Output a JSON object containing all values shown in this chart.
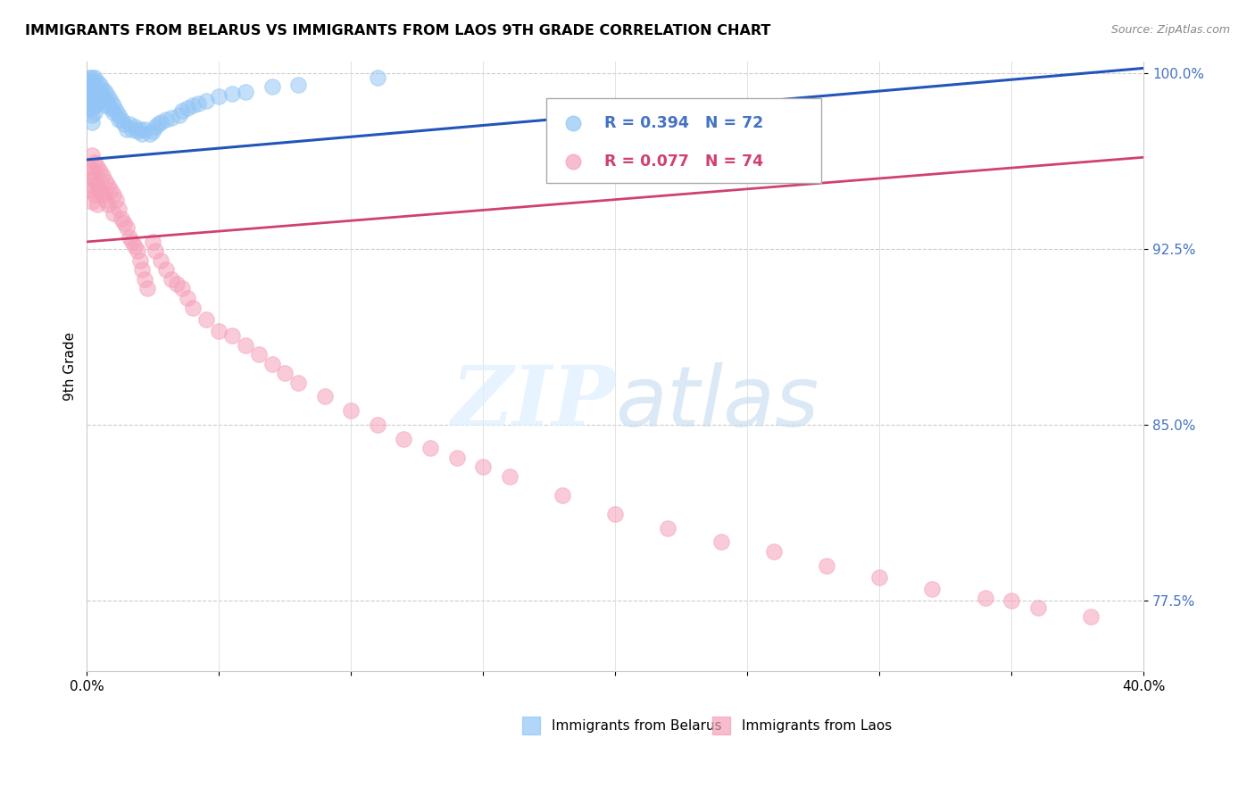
{
  "title": "IMMIGRANTS FROM BELARUS VS IMMIGRANTS FROM LAOS 9TH GRADE CORRELATION CHART",
  "source": "Source: ZipAtlas.com",
  "ylabel": "9th Grade",
  "xlim": [
    0.0,
    0.4
  ],
  "ylim": [
    0.745,
    1.005
  ],
  "yticks": [
    1.0,
    0.925,
    0.85,
    0.775
  ],
  "ytick_labels": [
    "100.0%",
    "92.5%",
    "85.0%",
    "77.5%"
  ],
  "xtick_positions": [
    0.0,
    0.05,
    0.1,
    0.15,
    0.2,
    0.25,
    0.3,
    0.35,
    0.4
  ],
  "blue_color": "#92c5f5",
  "pink_color": "#f5a0b8",
  "trend_blue": "#2255bb",
  "trend_pink": "#d04070",
  "legend_r_blue": "R = 0.394",
  "legend_n_blue": "N = 72",
  "legend_r_pink": "R = 0.077",
  "legend_n_pink": "N = 74",
  "legend_blue_label": "Immigrants from Belarus",
  "legend_pink_label": "Immigrants from Laos",
  "belarus_x": [
    0.001,
    0.001,
    0.001,
    0.001,
    0.001,
    0.001,
    0.001,
    0.002,
    0.002,
    0.002,
    0.002,
    0.002,
    0.002,
    0.002,
    0.002,
    0.002,
    0.003,
    0.003,
    0.003,
    0.003,
    0.003,
    0.003,
    0.004,
    0.004,
    0.004,
    0.004,
    0.005,
    0.005,
    0.005,
    0.006,
    0.006,
    0.007,
    0.007,
    0.007,
    0.008,
    0.008,
    0.009,
    0.009,
    0.01,
    0.01,
    0.011,
    0.012,
    0.012,
    0.013,
    0.014,
    0.015,
    0.016,
    0.017,
    0.018,
    0.019,
    0.02,
    0.021,
    0.022,
    0.024,
    0.025,
    0.026,
    0.027,
    0.028,
    0.03,
    0.032,
    0.035,
    0.036,
    0.038,
    0.04,
    0.042,
    0.045,
    0.05,
    0.055,
    0.06,
    0.07,
    0.08,
    0.11
  ],
  "belarus_y": [
    0.998,
    0.996,
    0.994,
    0.992,
    0.99,
    0.988,
    0.985,
    0.998,
    0.996,
    0.994,
    0.992,
    0.99,
    0.988,
    0.985,
    0.982,
    0.979,
    0.998,
    0.995,
    0.992,
    0.989,
    0.986,
    0.983,
    0.996,
    0.993,
    0.99,
    0.987,
    0.995,
    0.992,
    0.989,
    0.993,
    0.99,
    0.992,
    0.989,
    0.986,
    0.99,
    0.987,
    0.988,
    0.985,
    0.986,
    0.983,
    0.984,
    0.982,
    0.98,
    0.98,
    0.978,
    0.976,
    0.978,
    0.976,
    0.977,
    0.975,
    0.976,
    0.974,
    0.976,
    0.974,
    0.975,
    0.977,
    0.978,
    0.979,
    0.98,
    0.981,
    0.982,
    0.984,
    0.985,
    0.986,
    0.987,
    0.988,
    0.99,
    0.991,
    0.992,
    0.994,
    0.995,
    0.998
  ],
  "laos_x": [
    0.001,
    0.001,
    0.001,
    0.002,
    0.002,
    0.002,
    0.002,
    0.003,
    0.003,
    0.003,
    0.004,
    0.004,
    0.004,
    0.005,
    0.005,
    0.006,
    0.006,
    0.007,
    0.007,
    0.008,
    0.008,
    0.009,
    0.01,
    0.01,
    0.011,
    0.012,
    0.013,
    0.014,
    0.015,
    0.016,
    0.017,
    0.018,
    0.019,
    0.02,
    0.021,
    0.022,
    0.023,
    0.025,
    0.026,
    0.028,
    0.03,
    0.032,
    0.034,
    0.036,
    0.038,
    0.04,
    0.045,
    0.05,
    0.055,
    0.06,
    0.065,
    0.07,
    0.075,
    0.08,
    0.09,
    0.1,
    0.11,
    0.12,
    0.13,
    0.14,
    0.15,
    0.16,
    0.18,
    0.2,
    0.22,
    0.24,
    0.26,
    0.28,
    0.3,
    0.32,
    0.34,
    0.35,
    0.36,
    0.38
  ],
  "laos_y": [
    0.96,
    0.955,
    0.95,
    0.965,
    0.958,
    0.952,
    0.945,
    0.962,
    0.955,
    0.948,
    0.96,
    0.952,
    0.944,
    0.958,
    0.95,
    0.956,
    0.948,
    0.954,
    0.946,
    0.952,
    0.944,
    0.95,
    0.948,
    0.94,
    0.946,
    0.942,
    0.938,
    0.936,
    0.934,
    0.93,
    0.928,
    0.926,
    0.924,
    0.92,
    0.916,
    0.912,
    0.908,
    0.928,
    0.924,
    0.92,
    0.916,
    0.912,
    0.91,
    0.908,
    0.904,
    0.9,
    0.895,
    0.89,
    0.888,
    0.884,
    0.88,
    0.876,
    0.872,
    0.868,
    0.862,
    0.856,
    0.85,
    0.844,
    0.84,
    0.836,
    0.832,
    0.828,
    0.82,
    0.812,
    0.806,
    0.8,
    0.796,
    0.79,
    0.785,
    0.78,
    0.776,
    0.775,
    0.772,
    0.768
  ]
}
